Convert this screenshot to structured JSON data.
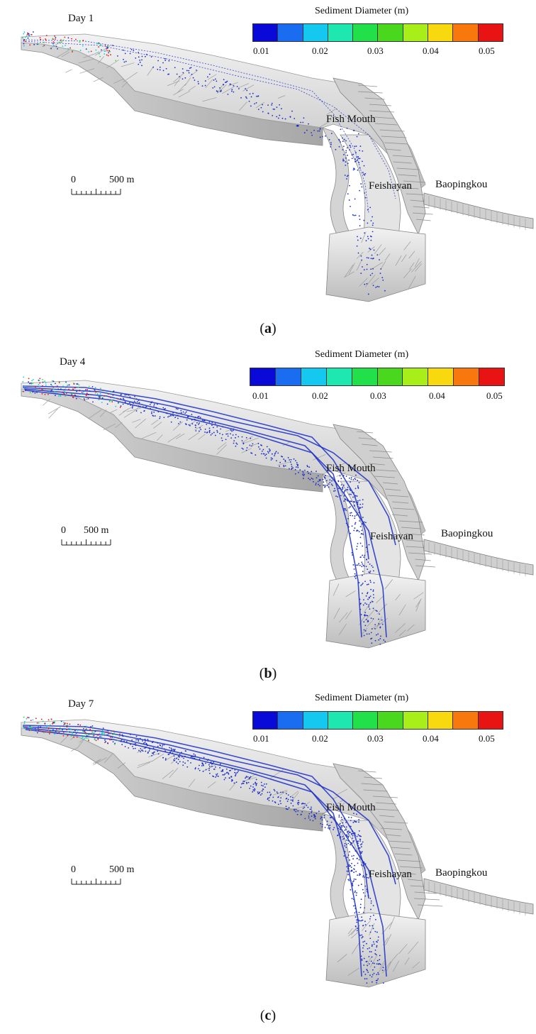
{
  "colors": [
    "#0a0ad8",
    "#1a6cf0",
    "#14c8f0",
    "#1ee8b0",
    "#22e04a",
    "#4ad81e",
    "#a8ee18",
    "#f8d80e",
    "#f8780e",
    "#e81414"
  ],
  "colorbar": {
    "title": "Sediment Diameter (m)",
    "ticks": [
      "0.01",
      "0.02",
      "0.03",
      "0.04",
      "0.05"
    ]
  },
  "labels": {
    "fish_mouth": "Fish Mouth",
    "feishayan": "Feishayan",
    "baopingkou": "Baopingkou",
    "scale_zero": "0",
    "scale_len": "500 m"
  },
  "panels": [
    {
      "day": "Day 1",
      "caption": "a"
    },
    {
      "day": "Day 4",
      "caption": "b"
    },
    {
      "day": "Day 7",
      "caption": "c"
    }
  ]
}
